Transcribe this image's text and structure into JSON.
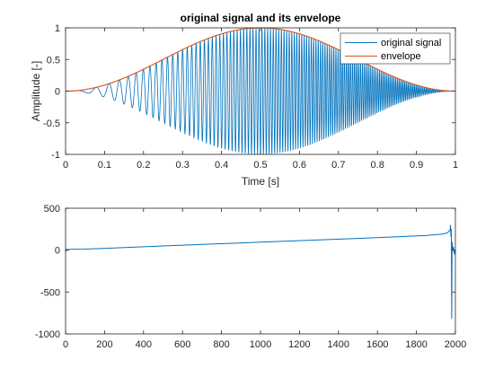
{
  "chart_data": [
    {
      "type": "line",
      "title": "original signal and its envelope",
      "xlabel": "Time [s]",
      "ylabel": "Amplitude [-]",
      "xlim": [
        0,
        1
      ],
      "ylim": [
        -1,
        1
      ],
      "xticks": [
        0,
        0.1,
        0.2,
        0.3,
        0.4,
        0.5,
        0.6,
        0.7,
        0.8,
        0.9,
        1
      ],
      "xtick_labels": [
        "0",
        "0.1",
        "0.2",
        "0.3",
        "0.4",
        "0.5",
        "0.6",
        "0.7",
        "0.8",
        "0.9",
        "1"
      ],
      "yticks": [
        -1,
        -0.5,
        0,
        0.5,
        1
      ],
      "ytick_labels": [
        "-1",
        "-0.5",
        "0",
        "0.5",
        "1"
      ],
      "grid": false,
      "legend_position": "top-right",
      "series": [
        {
          "name": "original signal",
          "color": "#0072BD",
          "description_model": "chirp",
          "envelope": "sin^2(pi*t)",
          "freq_start_hz": 6,
          "freq_end_hz": 260
        },
        {
          "name": "envelope",
          "color": "#D95319",
          "x": [
            0,
            0.1,
            0.2,
            0.3,
            0.4,
            0.5,
            0.6,
            0.7,
            0.8,
            0.9,
            1
          ],
          "y": [
            0,
            0.095,
            0.345,
            0.655,
            0.905,
            1,
            0.905,
            0.655,
            0.345,
            0.095,
            0
          ]
        }
      ]
    },
    {
      "type": "line",
      "title": "",
      "xlabel": "",
      "ylabel": "",
      "xlim": [
        0,
        2000
      ],
      "ylim": [
        -1000,
        500
      ],
      "xticks": [
        0,
        200,
        400,
        600,
        800,
        1000,
        1200,
        1400,
        1600,
        1800,
        2000
      ],
      "xtick_labels": [
        "0",
        "200",
        "400",
        "600",
        "800",
        "1000",
        "1200",
        "1400",
        "1600",
        "1800",
        "2000"
      ],
      "yticks": [
        -1000,
        -500,
        0,
        500
      ],
      "ytick_labels": [
        "-1000",
        "-500",
        "0",
        "500"
      ],
      "grid": false,
      "series": [
        {
          "color": "#0072BD",
          "x": [
            0,
            5,
            10,
            20,
            100,
            500,
            1000,
            1500,
            1850,
            1900,
            1930,
            1950,
            1960,
            1965,
            1970,
            1973,
            1975,
            1977,
            1979,
            1981,
            1983,
            1985,
            1990,
            1995,
            1999
          ],
          "y": [
            -25,
            10,
            5,
            10,
            12,
            50,
            95,
            140,
            175,
            185,
            190,
            200,
            210,
            220,
            235,
            240,
            300,
            160,
            250,
            -820,
            100,
            -10,
            40,
            -50,
            0
          ]
        }
      ]
    }
  ]
}
